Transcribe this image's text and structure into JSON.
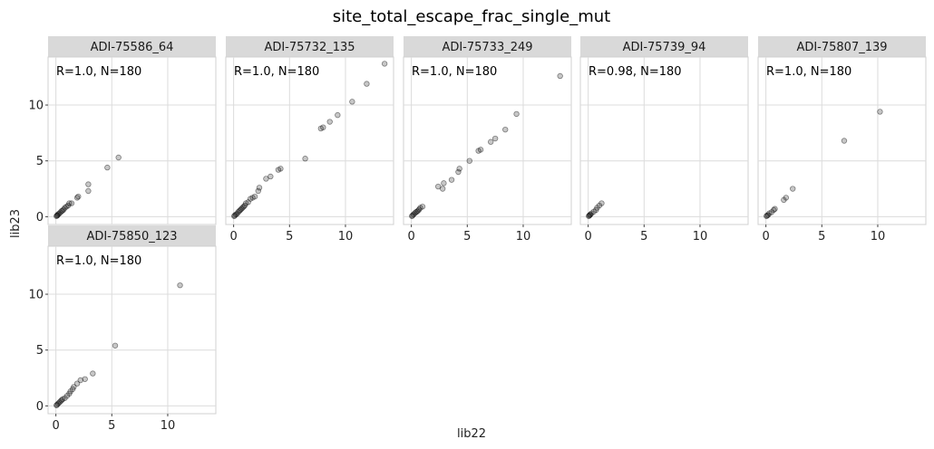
{
  "chart_data": {
    "type": "scatter",
    "title": "site_total_escape_frac_single_mut",
    "xlabel": "lib22",
    "ylabel": "lib23",
    "xlim": [
      -0.7,
      14.3
    ],
    "ylim": [
      -0.7,
      14.3
    ],
    "xticks": [
      0,
      5,
      10
    ],
    "yticks": [
      0,
      5,
      10
    ],
    "grid": true,
    "facets": [
      {
        "label": "ADI-75586_64",
        "annotation": "R=1.0, N=180",
        "points": [
          [
            0.05,
            0.05
          ],
          [
            0.1,
            0.1
          ],
          [
            0.15,
            0.12
          ],
          [
            0.2,
            0.22
          ],
          [
            0.3,
            0.28
          ],
          [
            0.4,
            0.38
          ],
          [
            0.5,
            0.5
          ],
          [
            0.6,
            0.55
          ],
          [
            0.7,
            0.65
          ],
          [
            0.8,
            0.8
          ],
          [
            0.95,
            0.9
          ],
          [
            1.1,
            1.0
          ],
          [
            1.2,
            1.2
          ],
          [
            1.4,
            1.2
          ],
          [
            1.9,
            1.7
          ],
          [
            2.0,
            1.8
          ],
          [
            2.9,
            2.3
          ],
          [
            2.9,
            2.9
          ],
          [
            4.6,
            4.4
          ],
          [
            5.6,
            5.3
          ]
        ]
      },
      {
        "label": "ADI-75732_135",
        "annotation": "R=1.0, N=180",
        "points": [
          [
            0.05,
            0.05
          ],
          [
            0.1,
            0.1
          ],
          [
            0.2,
            0.2
          ],
          [
            0.3,
            0.25
          ],
          [
            0.4,
            0.4
          ],
          [
            0.5,
            0.5
          ],
          [
            0.6,
            0.6
          ],
          [
            0.7,
            0.7
          ],
          [
            0.8,
            0.8
          ],
          [
            0.9,
            0.9
          ],
          [
            1.0,
            1.0
          ],
          [
            1.1,
            1.2
          ],
          [
            1.3,
            1.3
          ],
          [
            1.5,
            1.6
          ],
          [
            1.7,
            1.7
          ],
          [
            1.9,
            1.8
          ],
          [
            2.2,
            2.3
          ],
          [
            2.3,
            2.6
          ],
          [
            2.9,
            3.4
          ],
          [
            3.3,
            3.6
          ],
          [
            4.0,
            4.2
          ],
          [
            4.2,
            4.3
          ],
          [
            6.4,
            5.2
          ],
          [
            7.8,
            7.9
          ],
          [
            8.0,
            8.0
          ],
          [
            8.6,
            8.5
          ],
          [
            9.3,
            9.1
          ],
          [
            10.6,
            10.3
          ],
          [
            11.9,
            11.9
          ],
          [
            13.5,
            13.7
          ]
        ]
      },
      {
        "label": "ADI-75733_249",
        "annotation": "R=1.0, N=180",
        "points": [
          [
            0.05,
            0.05
          ],
          [
            0.1,
            0.1
          ],
          [
            0.2,
            0.2
          ],
          [
            0.3,
            0.3
          ],
          [
            0.4,
            0.4
          ],
          [
            0.5,
            0.45
          ],
          [
            0.6,
            0.55
          ],
          [
            0.7,
            0.65
          ],
          [
            0.8,
            0.8
          ],
          [
            1.0,
            0.9
          ],
          [
            2.4,
            2.7
          ],
          [
            2.8,
            2.5
          ],
          [
            2.9,
            3.0
          ],
          [
            3.6,
            3.3
          ],
          [
            4.2,
            4.0
          ],
          [
            4.3,
            4.3
          ],
          [
            5.2,
            5.0
          ],
          [
            6.0,
            5.9
          ],
          [
            6.2,
            6.0
          ],
          [
            7.1,
            6.7
          ],
          [
            7.5,
            7.0
          ],
          [
            8.4,
            7.8
          ],
          [
            9.4,
            9.2
          ],
          [
            13.3,
            12.6
          ]
        ]
      },
      {
        "label": "ADI-75739_94",
        "annotation": "R=0.98, N=180",
        "points": [
          [
            0.05,
            0.05
          ],
          [
            0.1,
            0.1
          ],
          [
            0.15,
            0.15
          ],
          [
            0.2,
            0.2
          ],
          [
            0.3,
            0.3
          ],
          [
            0.5,
            0.45
          ],
          [
            0.7,
            0.6
          ],
          [
            0.8,
            0.8
          ],
          [
            1.0,
            1.0
          ],
          [
            1.2,
            1.2
          ]
        ]
      },
      {
        "label": "ADI-75807_139",
        "annotation": "R=1.0, N=180",
        "points": [
          [
            0.05,
            0.05
          ],
          [
            0.1,
            0.1
          ],
          [
            0.2,
            0.15
          ],
          [
            0.3,
            0.3
          ],
          [
            0.5,
            0.4
          ],
          [
            0.7,
            0.6
          ],
          [
            0.8,
            0.7
          ],
          [
            1.6,
            1.5
          ],
          [
            1.8,
            1.7
          ],
          [
            2.4,
            2.5
          ],
          [
            7.0,
            6.8
          ],
          [
            10.2,
            9.4
          ]
        ]
      },
      {
        "label": "ADI-75850_123",
        "annotation": "R=1.0, N=180",
        "points": [
          [
            0.05,
            0.05
          ],
          [
            0.1,
            0.1
          ],
          [
            0.2,
            0.2
          ],
          [
            0.3,
            0.3
          ],
          [
            0.4,
            0.4
          ],
          [
            0.5,
            0.5
          ],
          [
            0.6,
            0.6
          ],
          [
            0.8,
            0.7
          ],
          [
            1.0,
            0.9
          ],
          [
            1.2,
            1.1
          ],
          [
            1.3,
            1.3
          ],
          [
            1.5,
            1.5
          ],
          [
            1.6,
            1.7
          ],
          [
            1.9,
            2.0
          ],
          [
            2.2,
            2.3
          ],
          [
            2.6,
            2.4
          ],
          [
            3.3,
            2.9
          ],
          [
            5.3,
            5.4
          ],
          [
            11.1,
            10.8
          ]
        ]
      }
    ]
  }
}
